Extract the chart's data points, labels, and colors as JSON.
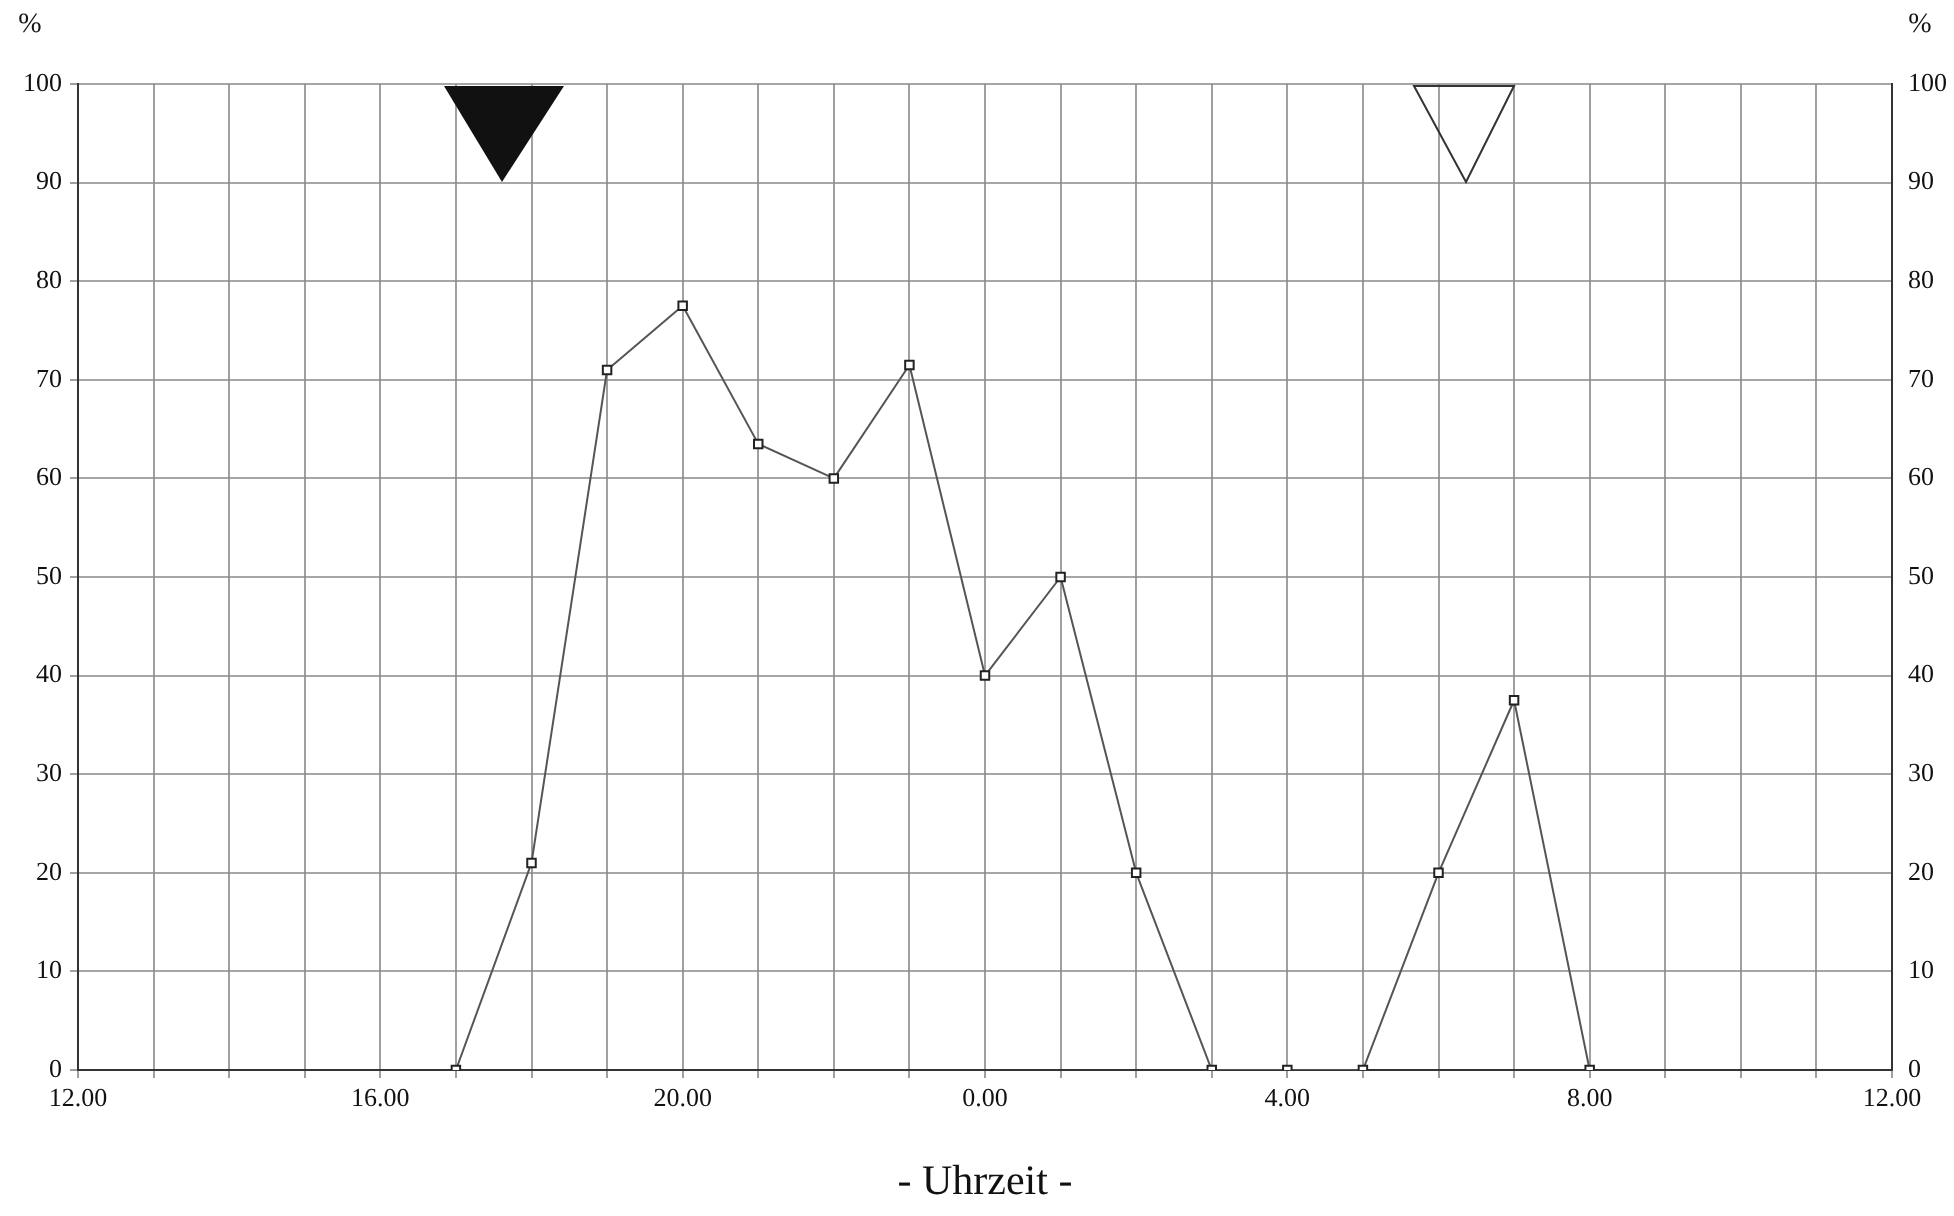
{
  "chart_data": {
    "type": "line",
    "xlabel": "- Uhrzeit -",
    "ylabel": "%",
    "y2label": "%",
    "categories": [
      "12.00",
      null,
      null,
      null,
      "16.00",
      null,
      null,
      null,
      "20.00",
      null,
      null,
      null,
      "0.00",
      null,
      null,
      null,
      "4.00",
      null,
      null,
      null,
      "8.00",
      null,
      null,
      null,
      "12.00"
    ],
    "series": [
      {
        "color": "#555555",
        "values": [
          null,
          null,
          null,
          null,
          null,
          0,
          21,
          71,
          77.5,
          63.5,
          60,
          71.5,
          40,
          50,
          20,
          0,
          0,
          0,
          20,
          37.5,
          0,
          null,
          null,
          null,
          null
        ]
      }
    ],
    "ylim": [
      0,
      100
    ],
    "yticks": [
      0,
      10,
      20,
      30,
      40,
      50,
      60,
      70,
      80,
      90,
      100
    ],
    "y2lim": [
      0,
      100
    ],
    "y2ticks": [
      0,
      10,
      20,
      30,
      40,
      50,
      60,
      70,
      80,
      90,
      100
    ],
    "grid": true,
    "legend": false,
    "marker": "square",
    "line_style": "solid"
  }
}
